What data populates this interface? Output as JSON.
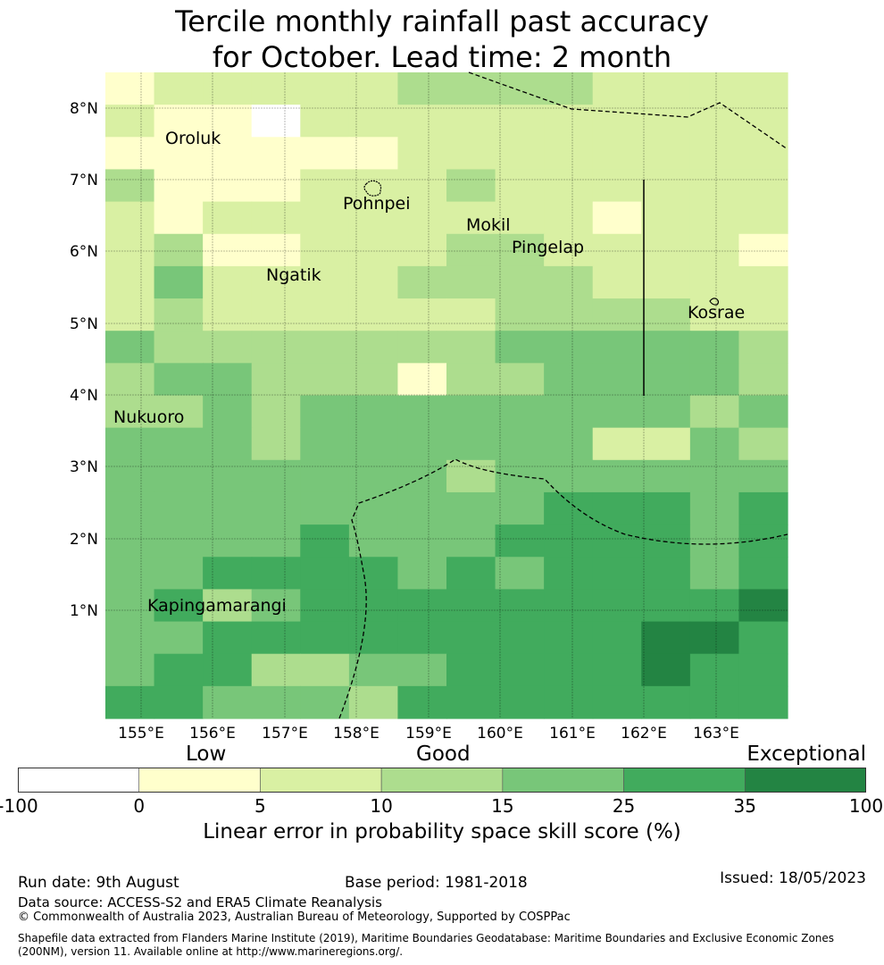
{
  "title_line1": "Tercile monthly rainfall past accuracy",
  "title_line2": "for October. Lead time: 2 month",
  "map": {
    "lon_ticks": [
      "155°E",
      "156°E",
      "157°E",
      "158°E",
      "159°E",
      "160°E",
      "161°E",
      "162°E",
      "163°E"
    ],
    "lat_ticks": [
      "8°N",
      "7°N",
      "6°N",
      "5°N",
      "4°N",
      "3°N",
      "2°N",
      "1°N"
    ],
    "places": [
      {
        "name": "Oroluk"
      },
      {
        "name": "Pohnpei"
      },
      {
        "name": "Mokil"
      },
      {
        "name": "Pingelap"
      },
      {
        "name": "Ngatik"
      },
      {
        "name": "Kosrae"
      },
      {
        "name": "Nukuoro"
      },
      {
        "name": "Kapingamarangi"
      }
    ],
    "grid_colors": {
      "0": "#ffffff",
      "1": "#ffffcc",
      "2": "#d9f0a3",
      "3": "#addd8e",
      "4": "#78c679",
      "5": "#41ab5d",
      "6": "#238443"
    },
    "grid": [
      "12222233332222",
      "21102222222222",
      "11111122222222",
      "31112223222222",
      "21222222221222",
      "23112223322221",
      "24222233332222",
      "23222222333322",
      "43333333444443",
      "34433313344443",
      "33434444444434",
      "44434444442243",
      "44444443444444",
      "44444444455545",
      "44445444555545",
      "44555545455545",
      "45345555555556",
      "44555555555665",
      "45533445555655",
      "55444355555555"
    ]
  },
  "colorbar": {
    "category_low": "Low",
    "category_good": "Good",
    "category_exceptional": "Exceptional",
    "ticks": [
      "-100",
      "0",
      "5",
      "10",
      "15",
      "25",
      "35",
      "100"
    ],
    "colors": [
      "#ffffff",
      "#ffffcc",
      "#d9f0a3",
      "#addd8e",
      "#78c679",
      "#41ab5d",
      "#238443"
    ],
    "label": "Linear error in probability space skill score (%)"
  },
  "footer": {
    "run_date": "Run date: 9th August",
    "base_period": "Base period: 1981-2018",
    "issued": "Issued: 18/05/2023",
    "data_source": "Data source: ACCESS-S2 and ERA5 Climate Reanalysis",
    "copyright": "© Commonwealth of Australia 2023, Australian Bureau of Meteorology, Supported by COSPPac",
    "shapefile_line1": "Shapefile data extracted from Flanders Marine Institute (2019), Maritime Boundaries Geodatabase: Maritime Boundaries and Exclusive Economic Zones",
    "shapefile_line2": "(200NM), version 11. Available online at http://www.marineregions.org/."
  }
}
